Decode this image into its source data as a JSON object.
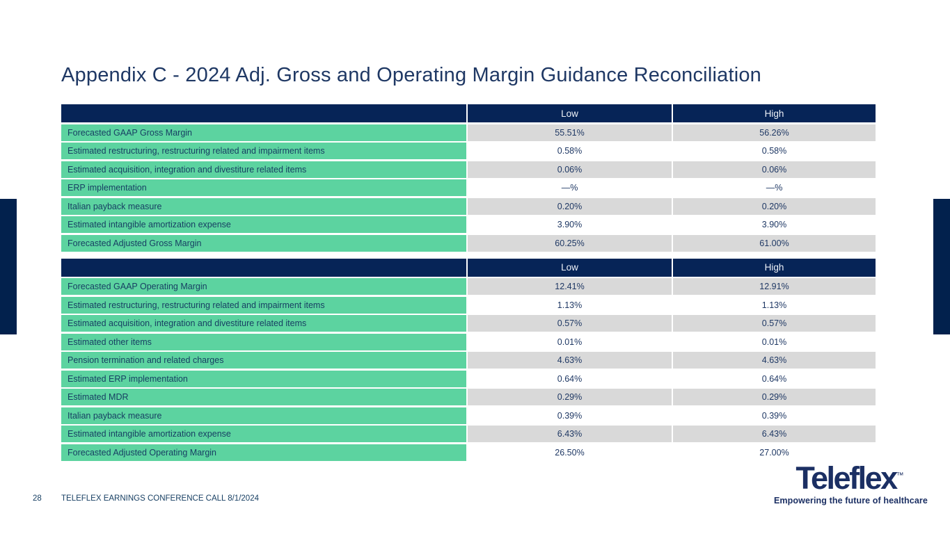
{
  "title": "Appendix C - 2024 Adj. Gross and Operating Margin Guidance Reconciliation",
  "colors": {
    "header_navy": "#062457",
    "side_bar_navy": "#02214d",
    "label_green": "#5cd3a0",
    "shaded_gray": "#d9d9d9",
    "label_text": "#173f63",
    "value_text": "#1f3864"
  },
  "tables": [
    {
      "name": "gross-margin-reconciliation",
      "columns": [
        "Low",
        "High"
      ],
      "rows": [
        {
          "label": "Forecasted GAAP Gross Margin",
          "low": "55.51%",
          "high": "56.26%"
        },
        {
          "label": "Estimated restructuring, restructuring related and impairment items",
          "low": "0.58%",
          "high": "0.58%"
        },
        {
          "label": "Estimated acquisition, integration and divestiture related items",
          "low": "0.06%",
          "high": "0.06%"
        },
        {
          "label": "ERP implementation",
          "low": "—%",
          "high": "—%"
        },
        {
          "label": "Italian payback measure",
          "low": "0.20%",
          "high": "0.20%"
        },
        {
          "label": "Estimated intangible amortization expense",
          "low": "3.90%",
          "high": "3.90%"
        },
        {
          "label": "Forecasted Adjusted Gross Margin",
          "low": "60.25%",
          "high": "61.00%"
        }
      ]
    },
    {
      "name": "operating-margin-reconciliation",
      "columns": [
        "Low",
        "High"
      ],
      "rows": [
        {
          "label": "Forecasted GAAP Operating Margin",
          "low": "12.41%",
          "high": "12.91%"
        },
        {
          "label": "Estimated restructuring, restructuring related and impairment items",
          "low": "1.13%",
          "high": "1.13%"
        },
        {
          "label": "Estimated acquisition, integration and divestiture related items",
          "low": "0.57%",
          "high": "0.57%"
        },
        {
          "label": "Estimated other items",
          "low": "0.01%",
          "high": "0.01%"
        },
        {
          "label": "Pension termination and related charges",
          "low": "4.63%",
          "high": "4.63%"
        },
        {
          "label": "Estimated ERP implementation",
          "low": "0.64%",
          "high": "0.64%"
        },
        {
          "label": "Estimated MDR",
          "low": "0.29%",
          "high": "0.29%"
        },
        {
          "label": "Italian payback measure",
          "low": "0.39%",
          "high": "0.39%"
        },
        {
          "label": "Estimated intangible amortization expense",
          "low": "6.43%",
          "high": "6.43%"
        },
        {
          "label": "Forecasted Adjusted Operating Margin",
          "low": "26.50%",
          "high": "27.00%"
        }
      ]
    }
  ],
  "footer": {
    "page_number": "28",
    "text": "TELEFLEX EARNINGS CONFERENCE CALL 8/1/2024"
  },
  "logo": {
    "wordmark": "Teleflex",
    "trademark": "™",
    "tagline": "Empowering the future of healthcare"
  }
}
